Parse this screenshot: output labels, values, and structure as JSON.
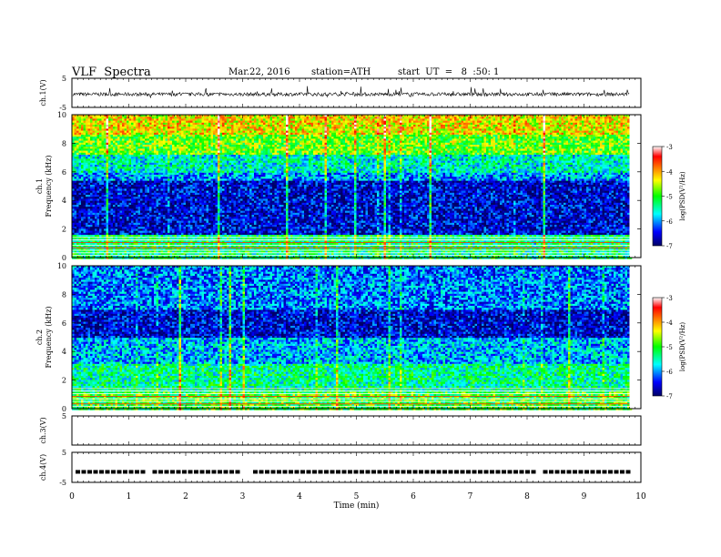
{
  "header": {
    "title": "VLF  Spectra",
    "date": "Mar.22, 2016",
    "station": "station=ATH",
    "start_ut": "start  UT  =   8  :50: 1"
  },
  "chart_data": [
    {
      "type": "line",
      "panel": "ch1",
      "ylabel": "ch.1(V)",
      "yticks": [
        "5",
        "-5"
      ],
      "ylim": [
        -5,
        5
      ],
      "description_level": -0.5
    },
    {
      "type": "heatmap",
      "panel": "ch1-spectrogram",
      "ylabel_channel": "ch.1",
      "ylabel": "Frequency  (kHz)",
      "yticks": [
        "0",
        "2",
        "4",
        "6",
        "8",
        "10"
      ],
      "ylim": [
        0,
        10
      ],
      "colorbar": {
        "label": "log(PSD(V²/Hz)",
        "ticks": [
          "-3",
          "-4",
          "-5",
          "-6",
          "-7"
        ],
        "range": [
          -7,
          -3
        ]
      },
      "bands_khz": [
        {
          "from": 0,
          "to": 1.6,
          "level": -5.3
        },
        {
          "from": 1.6,
          "to": 5.5,
          "level": -6.6
        },
        {
          "from": 5.5,
          "to": 6.0,
          "level": -6.0
        },
        {
          "from": 6.0,
          "to": 7.2,
          "level": -5.6
        },
        {
          "from": 7.2,
          "to": 8.6,
          "level": -4.8
        },
        {
          "from": 8.6,
          "to": 10.0,
          "level": -4.3
        }
      ]
    },
    {
      "type": "heatmap",
      "panel": "ch2-spectrogram",
      "ylabel_channel": "ch.2",
      "ylabel": "Frequency  (kHz)",
      "yticks": [
        "0",
        "2",
        "4",
        "6",
        "8",
        "10"
      ],
      "ylim": [
        0,
        10
      ],
      "colorbar": {
        "label": "log(PSD(V²/Hz)",
        "ticks": [
          "-3",
          "-4",
          "-5",
          "-6",
          "-7"
        ],
        "range": [
          -7,
          -3
        ]
      },
      "bands_khz": [
        {
          "from": 0,
          "to": 1.2,
          "level": -5.0
        },
        {
          "from": 1.2,
          "to": 3.2,
          "level": -5.4
        },
        {
          "from": 3.2,
          "to": 5.0,
          "level": -5.9
        },
        {
          "from": 5.0,
          "to": 7.0,
          "level": -6.6
        },
        {
          "from": 7.0,
          "to": 10.0,
          "level": -6.1
        }
      ]
    },
    {
      "type": "line",
      "panel": "ch3",
      "ylabel": "ch.3(V)",
      "yticks": [
        "5"
      ],
      "ylim": [
        -5,
        5
      ]
    },
    {
      "type": "scatter",
      "panel": "ch4",
      "ylabel": "ch.4(V)",
      "yticks": [
        "5",
        "-5"
      ],
      "ylim": [
        -5,
        5
      ],
      "level": -1.5
    }
  ],
  "x_axis": {
    "label": "Time  (min)",
    "ticks": [
      "0",
      "1",
      "2",
      "3",
      "4",
      "5",
      "6",
      "7",
      "8",
      "9",
      "10"
    ],
    "xlim": [
      0,
      10
    ],
    "data_end": 9.8
  },
  "colors": {
    "colormap": [
      "#000066",
      "#0000ff",
      "#00ffff",
      "#00ff00",
      "#ffff00",
      "#ff8000",
      "#ff0000",
      "#ffffff"
    ],
    "trace": "#000000"
  }
}
